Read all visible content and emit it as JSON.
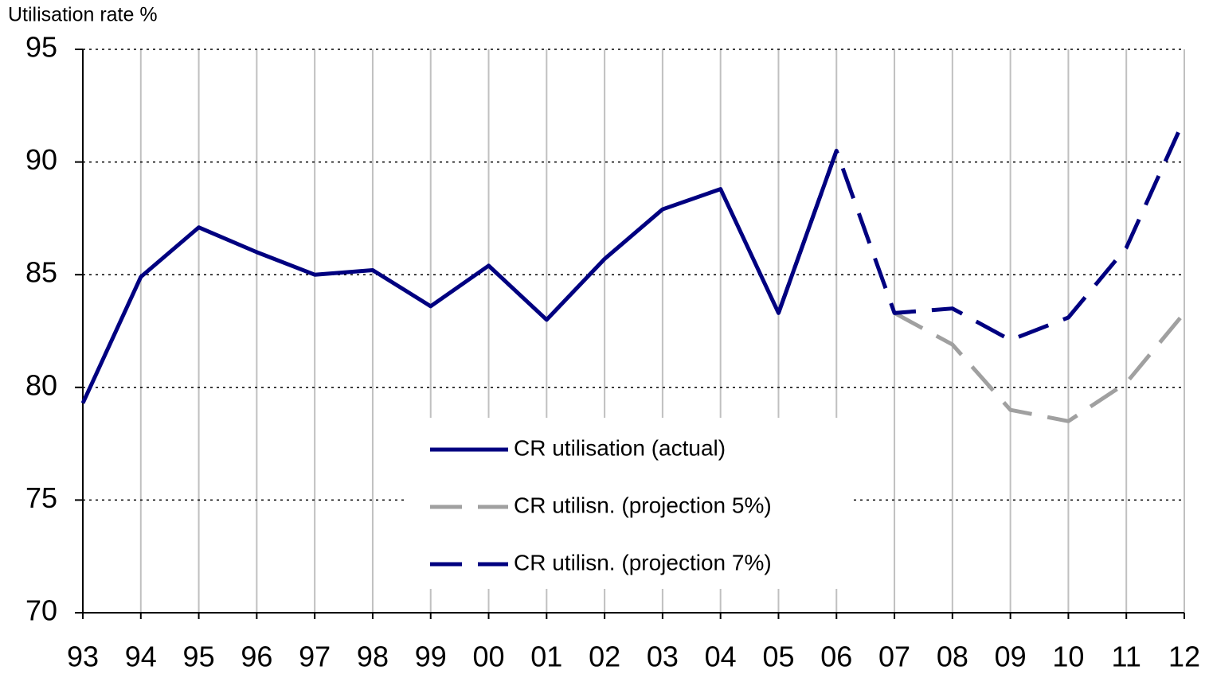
{
  "chart_data": {
    "type": "line",
    "y_label": "Utilisation rate %",
    "categories": [
      "93",
      "94",
      "95",
      "96",
      "97",
      "98",
      "99",
      "00",
      "01",
      "02",
      "03",
      "04",
      "05",
      "06",
      "07",
      "08",
      "09",
      "10",
      "11",
      "12"
    ],
    "series": [
      {
        "name": "CR utilisation (actual)",
        "color": "#000080",
        "dashed": false,
        "values": [
          79.3,
          84.9,
          87.1,
          86.0,
          85.0,
          85.2,
          83.6,
          85.4,
          83.0,
          85.7,
          87.9,
          88.8,
          83.3,
          90.5,
          null,
          null,
          null,
          null,
          null,
          null
        ]
      },
      {
        "name": "CR utilisn. (projection 5%)",
        "color": "#a0a0a0",
        "dashed": true,
        "values": [
          null,
          null,
          null,
          null,
          null,
          null,
          null,
          null,
          null,
          null,
          null,
          null,
          null,
          null,
          83.3,
          81.9,
          79.0,
          78.5,
          80.2,
          83.3
        ]
      },
      {
        "name": "CR utilisn. (projection 7%)",
        "color": "#000080",
        "dashed": true,
        "values": [
          null,
          null,
          null,
          null,
          null,
          null,
          null,
          null,
          null,
          null,
          null,
          null,
          83.3,
          90.5,
          83.3,
          83.5,
          82.1,
          83.1,
          86.2,
          91.9
        ]
      }
    ],
    "ylim": [
      70,
      95
    ],
    "yticks": [
      70,
      75,
      80,
      85,
      90,
      95
    ],
    "grid": true
  }
}
